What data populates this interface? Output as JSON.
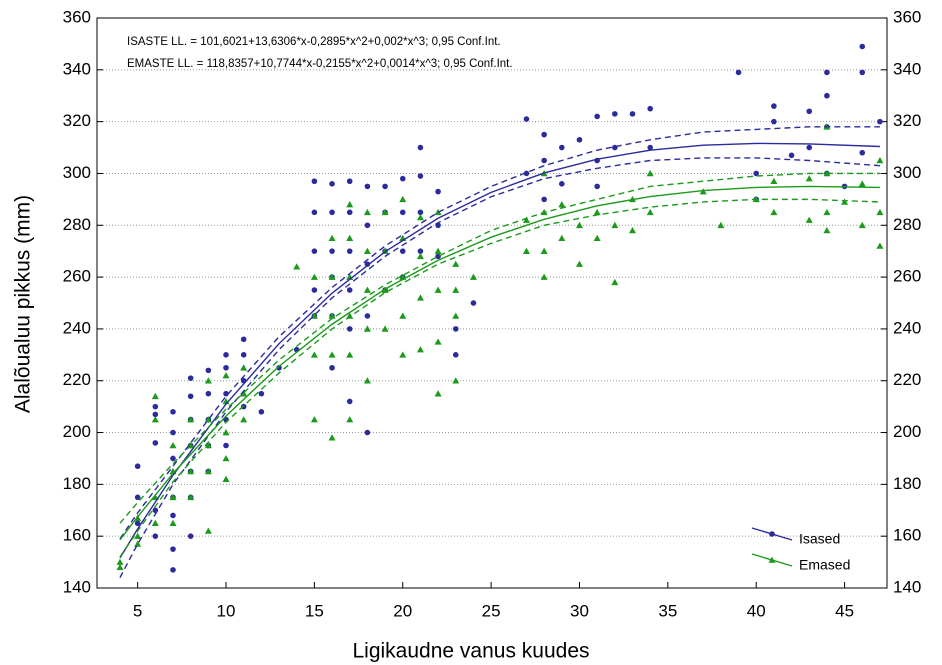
{
  "chart_data": {
    "type": "scatter",
    "annotations": [
      "ISASTE LL. = 101,6021+13,6306*x-0,2895*x^2+0,002*x^3; 0,95 Conf.Int.",
      "EMASTE LL. = 118,8357+10,7744*x-0,2155*x^2+0,0014*x^3; 0,95 Conf.Int."
    ],
    "xlabel": "Ligikaudne vanus kuudes",
    "ylabel": "Alalõualuu pikkus (mm)",
    "xlim": [
      2.7,
      47.4
    ],
    "ylim": [
      140,
      360
    ],
    "xticks": [
      5,
      10,
      15,
      20,
      25,
      30,
      35,
      40,
      45
    ],
    "yticks": [
      140,
      160,
      180,
      200,
      220,
      240,
      260,
      280,
      300,
      320,
      340,
      360
    ],
    "grid": true,
    "legend": "lower right",
    "series": [
      {
        "name": "Isased",
        "color": "#2b2b9c",
        "marker": "circle",
        "x": [
          5,
          5,
          5,
          6,
          6,
          6,
          6,
          6,
          7,
          7,
          7,
          7,
          7,
          7,
          7,
          8,
          8,
          8,
          8,
          8,
          8,
          8,
          9,
          9,
          9,
          9,
          9,
          10,
          10,
          10,
          10,
          10,
          11,
          11,
          11,
          11,
          12,
          12,
          13,
          14,
          15,
          15,
          15,
          15,
          15,
          16,
          16,
          16,
          16,
          16,
          16,
          17,
          17,
          17,
          17,
          17,
          17,
          18,
          18,
          18,
          18,
          18,
          19,
          19,
          19,
          19,
          20,
          20,
          20,
          20,
          21,
          21,
          21,
          21,
          22,
          22,
          22,
          23,
          23,
          24,
          27,
          27,
          28,
          28,
          28,
          29,
          29,
          30,
          31,
          31,
          31,
          32,
          32,
          33,
          34,
          34,
          39,
          40,
          40,
          41,
          41,
          42,
          43,
          43,
          44,
          44,
          44,
          44,
          45,
          46,
          46,
          47,
          46
        ],
        "values": [
          187,
          175,
          165,
          210,
          207,
          196,
          170,
          160,
          208,
          200,
          190,
          175,
          168,
          155,
          147,
          221,
          214,
          205,
          195,
          185,
          175,
          160,
          224,
          215,
          205,
          195,
          185,
          230,
          225,
          215,
          205,
          195,
          236,
          230,
          220,
          210,
          215,
          208,
          225,
          232,
          297,
          285,
          270,
          255,
          245,
          296,
          285,
          270,
          260,
          245,
          225,
          297,
          285,
          270,
          255,
          240,
          212,
          295,
          280,
          265,
          245,
          200,
          295,
          285,
          270,
          255,
          298,
          285,
          270,
          260,
          299,
          285,
          270,
          310,
          293,
          280,
          268,
          240,
          230,
          250,
          321,
          300,
          315,
          305,
          290,
          310,
          296,
          313,
          322,
          305,
          295,
          323,
          310,
          323,
          325,
          310,
          339,
          300,
          290,
          326,
          320,
          307,
          324,
          310,
          339,
          330,
          318,
          300,
          295,
          349,
          339,
          320,
          308
        ],
        "fit": {
          "x": [
            4,
            5,
            7,
            10,
            13,
            16,
            19,
            22,
            25,
            28,
            31,
            34,
            37,
            40,
            43,
            47
          ],
          "values": [
            151.6,
            162.8,
            183.5,
            211.0,
            234.3,
            253.8,
            269.8,
            282.7,
            292.7,
            300.2,
            305.5,
            309.0,
            310.9,
            311.6,
            311.4,
            310.4
          ],
          "lower": [
            144,
            157,
            180,
            208,
            232,
            252,
            268,
            281,
            291,
            298,
            302,
            305,
            306,
            306,
            305,
            303
          ],
          "upper": [
            159,
            169,
            187,
            214,
            237,
            256,
            272,
            285,
            295,
            303,
            309,
            313,
            316,
            317,
            318,
            318
          ]
        }
      },
      {
        "name": "Emased",
        "color": "#1c9a1c",
        "marker": "triangle",
        "x": [
          4,
          4,
          5,
          5,
          5,
          6,
          6,
          6,
          6,
          7,
          7,
          7,
          7,
          8,
          8,
          8,
          8,
          9,
          9,
          9,
          9,
          9,
          10,
          10,
          10,
          10,
          10,
          11,
          11,
          11,
          14,
          15,
          15,
          15,
          15,
          16,
          16,
          16,
          16,
          16,
          17,
          17,
          17,
          17,
          17,
          17,
          18,
          18,
          18,
          18,
          18,
          19,
          19,
          19,
          19,
          20,
          20,
          20,
          20,
          20,
          21,
          21,
          21,
          21,
          22,
          22,
          22,
          22,
          22,
          23,
          23,
          23,
          23,
          24,
          27,
          27,
          28,
          28,
          28,
          28,
          29,
          29,
          30,
          30,
          31,
          31,
          32,
          32,
          33,
          33,
          34,
          34,
          37,
          38,
          40,
          41,
          41,
          43,
          43,
          44,
          44,
          44,
          44,
          45,
          46,
          46,
          47,
          47,
          47
        ],
        "values": [
          150,
          148,
          167,
          160,
          157,
          214,
          205,
          175,
          165,
          195,
          185,
          175,
          165,
          205,
          195,
          185,
          175,
          220,
          205,
          195,
          185,
          162,
          222,
          212,
          200,
          190,
          182,
          225,
          215,
          205,
          264,
          260,
          245,
          230,
          205,
          275,
          260,
          245,
          230,
          198,
          288,
          275,
          260,
          245,
          230,
          205,
          285,
          270,
          255,
          240,
          220,
          285,
          270,
          255,
          240,
          290,
          275,
          260,
          245,
          230,
          283,
          268,
          252,
          232,
          285,
          270,
          255,
          235,
          215,
          265,
          255,
          245,
          220,
          260,
          282,
          270,
          300,
          285,
          270,
          260,
          288,
          275,
          280,
          265,
          285,
          275,
          280,
          258,
          290,
          278,
          300,
          285,
          293,
          280,
          290,
          297,
          285,
          298,
          282,
          318,
          300,
          285,
          278,
          289,
          296,
          280,
          305,
          285,
          272
        ],
        "fit": {
          "x": [
            4,
            5,
            7,
            10,
            13,
            16,
            19,
            22,
            25,
            28,
            31,
            34,
            37,
            40,
            43,
            47
          ],
          "values": [
            158.6,
            167.5,
            184.2,
            206.4,
            225.6,
            241.8,
            255.4,
            266.5,
            275.4,
            282.3,
            287.5,
            291.1,
            293.4,
            294.6,
            295.0,
            294.6
          ],
          "lower": [
            152,
            162,
            181,
            204,
            223,
            240,
            254,
            265,
            273,
            280,
            284,
            287,
            289,
            290,
            290,
            289
          ],
          "upper": [
            165,
            173,
            188,
            209,
            228,
            244,
            257,
            268,
            278,
            285,
            290,
            295,
            297,
            299,
            300,
            300
          ]
        }
      }
    ]
  }
}
